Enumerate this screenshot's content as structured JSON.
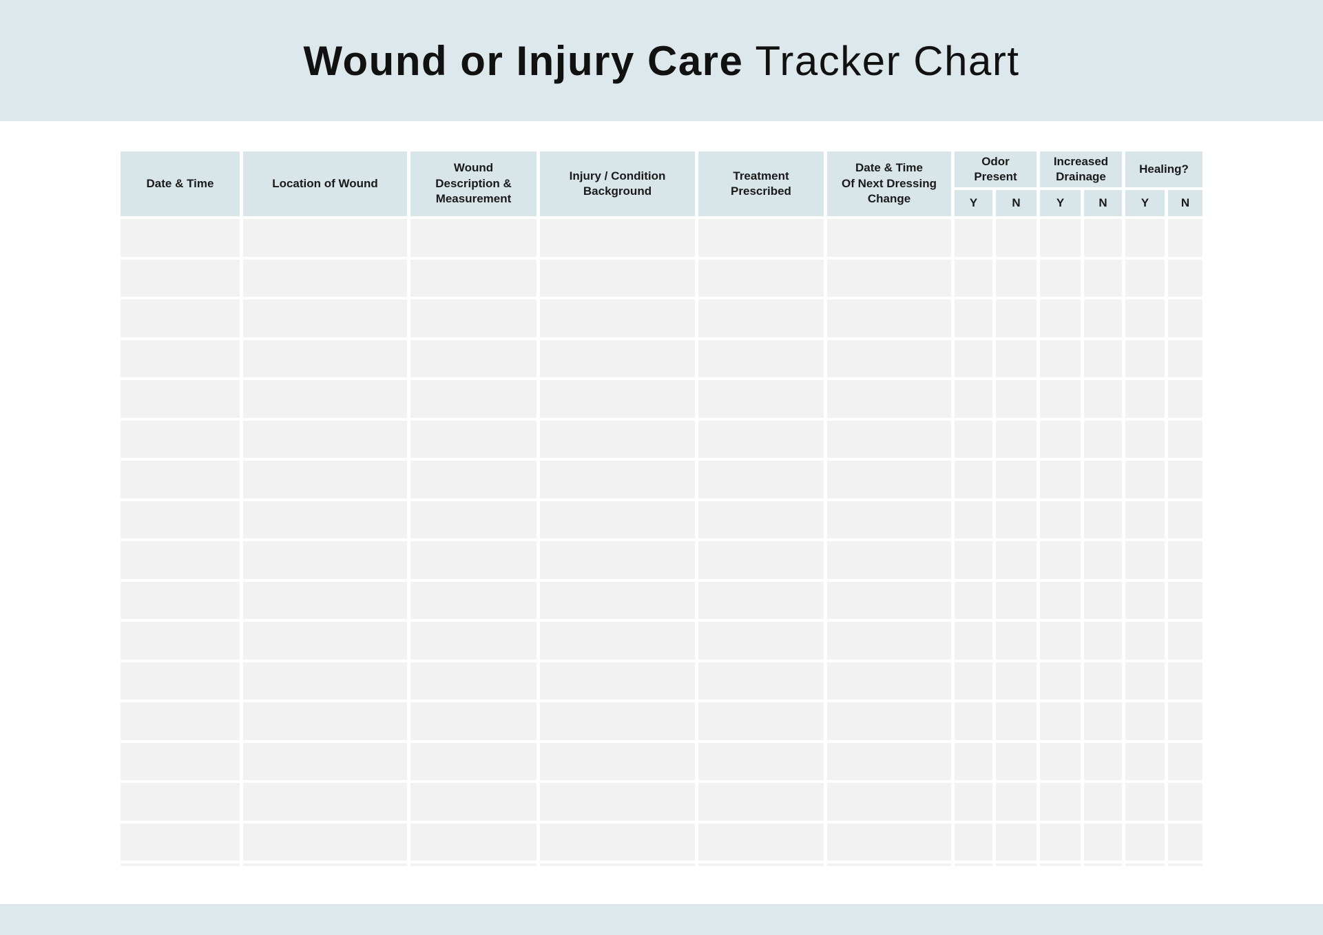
{
  "title": {
    "primary": "Wound or Injury Care",
    "secondary": " Tracker Chart"
  },
  "colors": {
    "banner_bg": "#dce8ec",
    "header_cell_bg": "#d8e5e9",
    "row_cell_bg": "#f2f2f2",
    "page_bg": "#ffffff",
    "text": "#1a1a1a"
  },
  "table": {
    "columns": [
      {
        "id": "date-time",
        "label": "Date & Time"
      },
      {
        "id": "location-of-wound",
        "label": "Location of Wound"
      },
      {
        "id": "wound-description-measurement",
        "label": [
          "Wound",
          "Description &",
          "Measurement"
        ]
      },
      {
        "id": "injury-condition-background",
        "label": [
          "Injury / Condition",
          "Background"
        ]
      },
      {
        "id": "treatment-prescribed",
        "label": [
          "Treatment",
          "Prescribed"
        ]
      },
      {
        "id": "next-dressing-change",
        "label": [
          "Date & Time",
          "Of Next Dressing",
          "Change"
        ]
      }
    ],
    "groups": [
      {
        "id": "odor-present",
        "label": [
          "Odor",
          "Present"
        ],
        "sub": [
          "Y",
          "N"
        ]
      },
      {
        "id": "increased-drainage",
        "label": [
          "Increased",
          "Drainage"
        ],
        "sub": [
          "Y",
          "N"
        ]
      },
      {
        "id": "healing",
        "label": "Healing?",
        "sub": [
          "Y",
          "N"
        ]
      }
    ],
    "row_count": 16,
    "cells_per_row": 12,
    "has_clipped_partial_row": true,
    "row_values": []
  }
}
